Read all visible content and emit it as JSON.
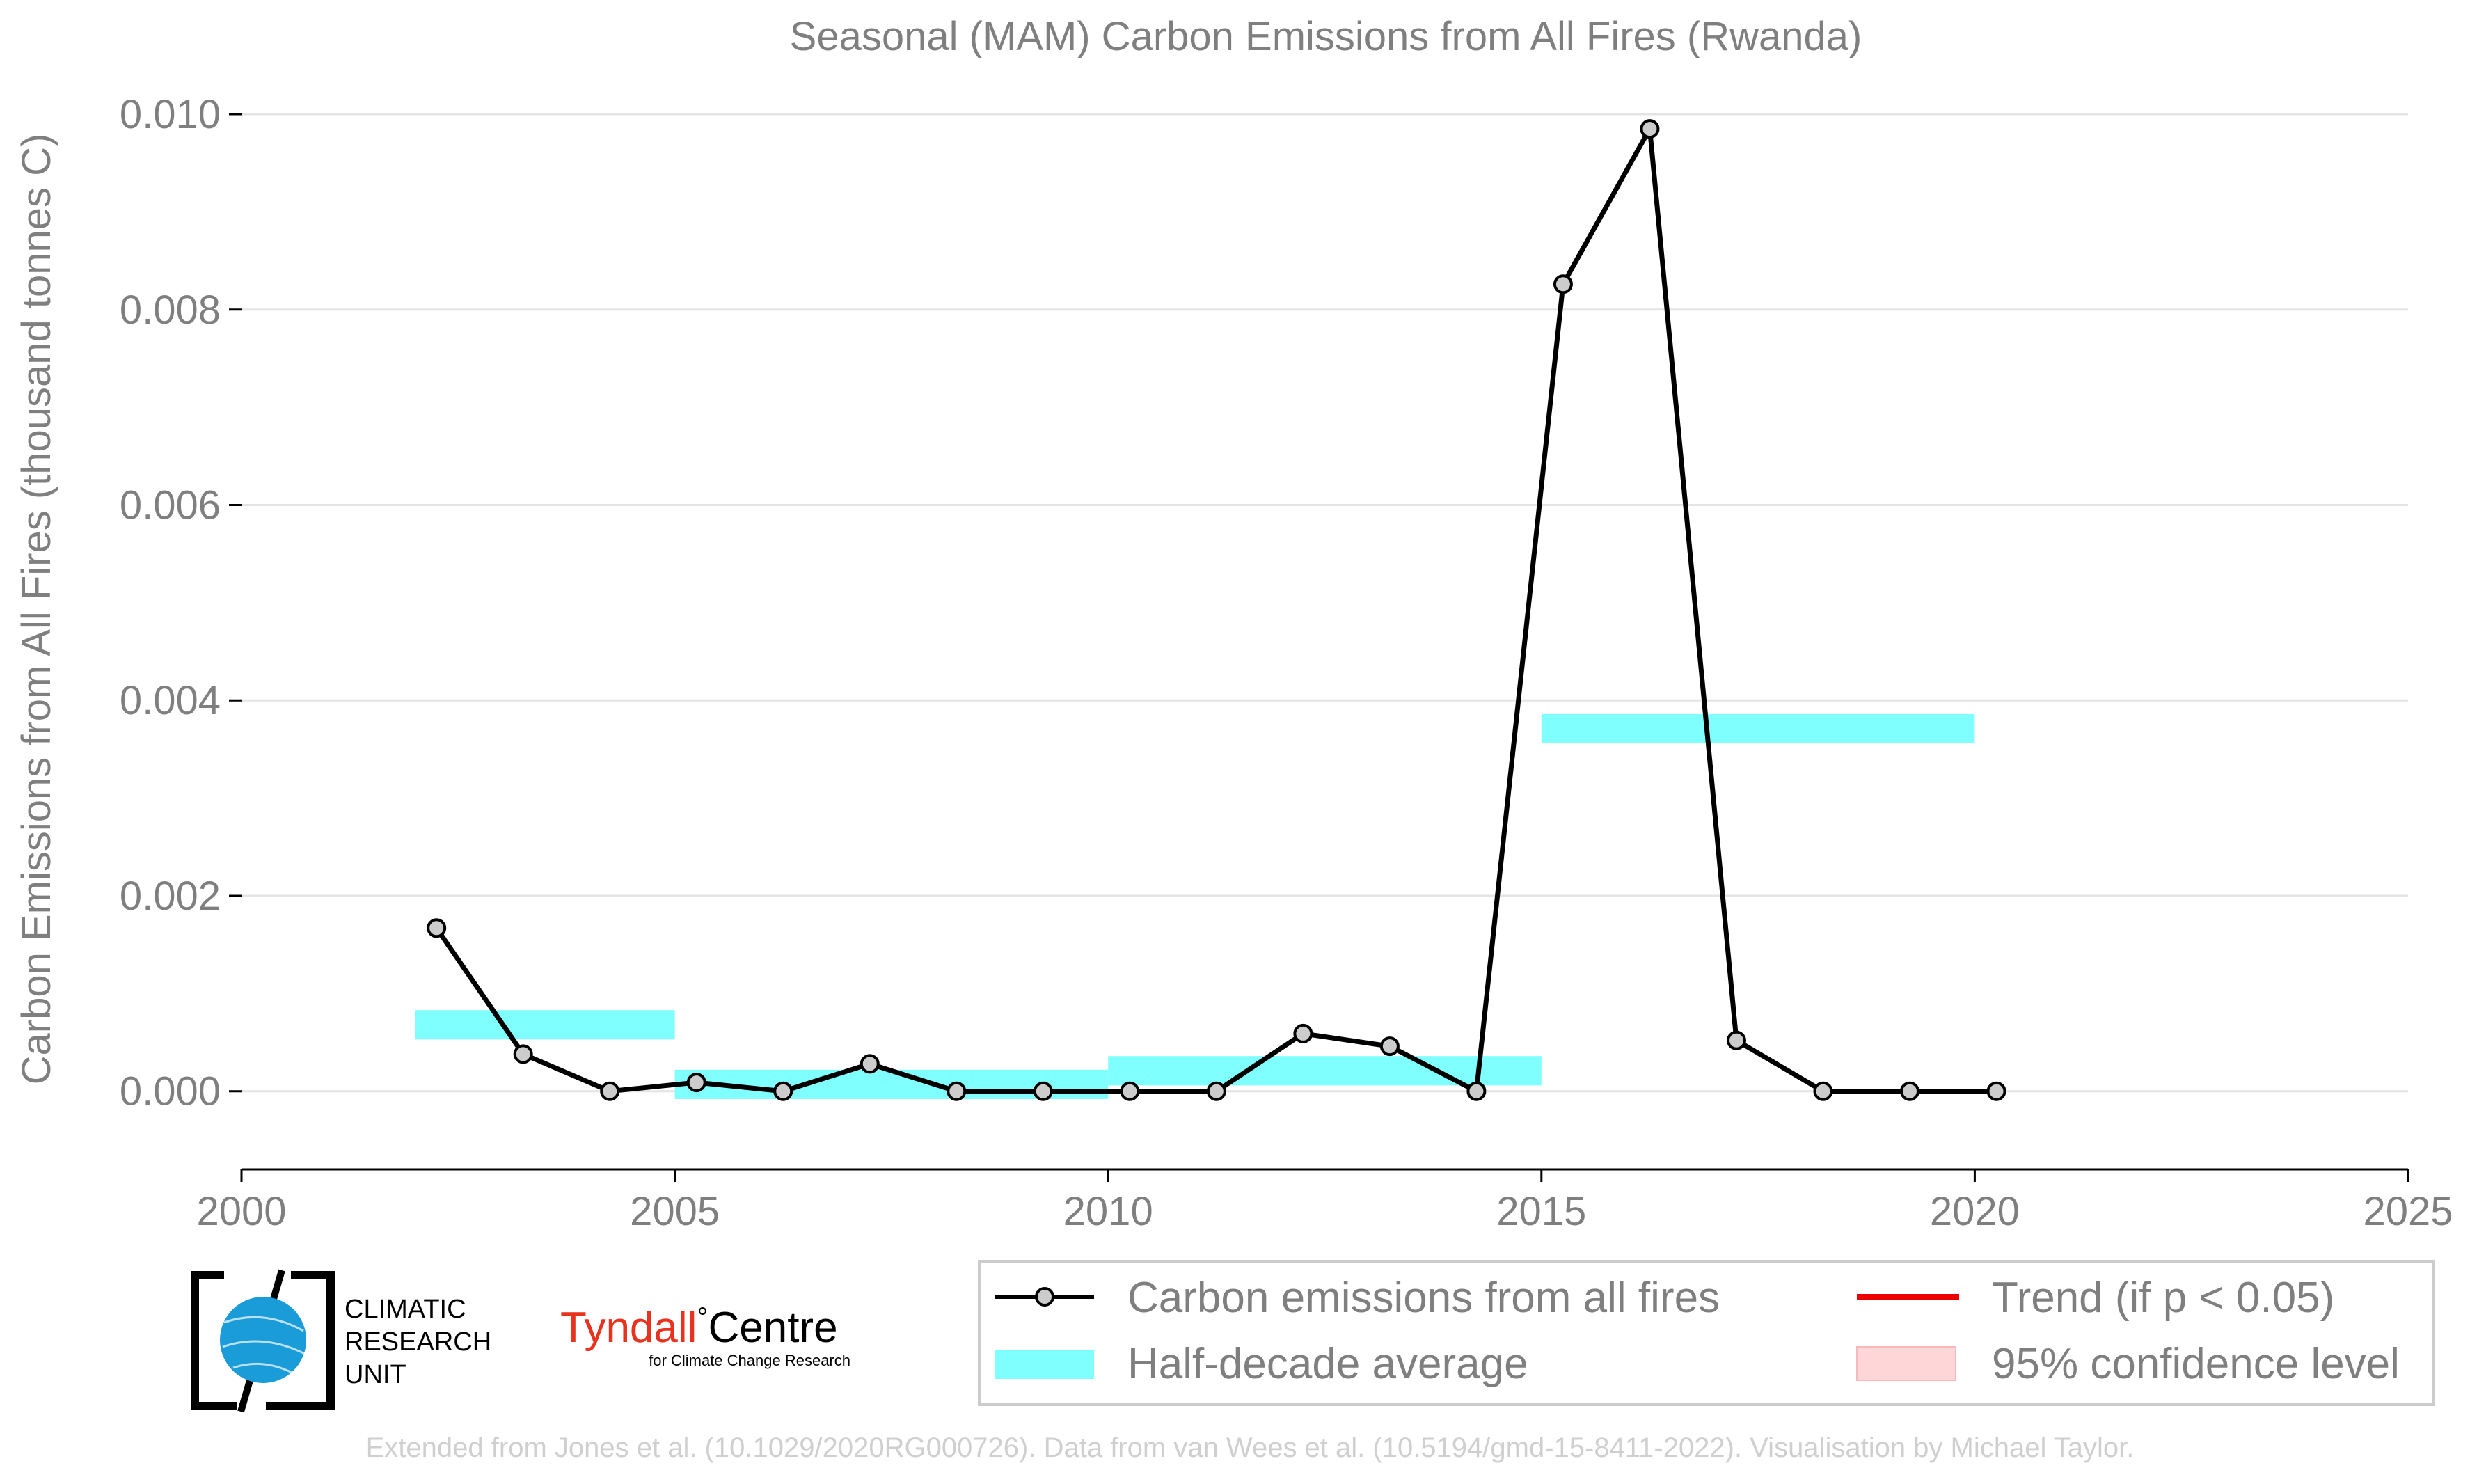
{
  "chart_data": {
    "type": "line",
    "title": "Seasonal (MAM) Carbon Emissions from All Fires (Rwanda)",
    "xlabel": "",
    "ylabel": "Carbon Emissions from All Fires (thousand tonnes C)",
    "xlim": [
      2000,
      2025
    ],
    "ylim": [
      -0.0008,
      0.0101
    ],
    "x_ticks": [
      2000,
      2005,
      2010,
      2015,
      2020,
      2025
    ],
    "y_ticks": [
      0.0,
      0.002,
      0.004,
      0.006,
      0.008,
      0.01
    ],
    "x_tick_labels": [
      "2000",
      "2005",
      "2010",
      "2015",
      "2020",
      "2025"
    ],
    "y_tick_labels": [
      "0.000",
      "0.002",
      "0.004",
      "0.006",
      "0.008",
      "0.010"
    ],
    "grid": "horizontal",
    "legend_position": "bottom",
    "series": [
      {
        "name": "Carbon emissions from all fires",
        "color": "#000000",
        "marker_fill": "#cccccc",
        "x": [
          2002.25,
          2003.25,
          2004.25,
          2005.25,
          2006.25,
          2007.25,
          2008.25,
          2009.25,
          2010.25,
          2011.25,
          2012.25,
          2013.25,
          2014.25,
          2015.25,
          2016.25,
          2017.25,
          2018.25,
          2019.25,
          2020.25
        ],
        "y": [
          0.00167,
          0.00038,
          0.0,
          9e-05,
          0.0,
          0.00028,
          0.0,
          0.0,
          0.0,
          0.0,
          0.00059,
          0.00046,
          0.0,
          0.00826,
          0.00985,
          0.00052,
          0.0,
          0.0,
          0.0
        ]
      }
    ],
    "half_decade_average": {
      "name": "Half-decade average",
      "color": "#80ffff",
      "periods": [
        {
          "x0": 2002,
          "x1": 2005,
          "y": 0.00068
        },
        {
          "x0": 2005,
          "x1": 2010,
          "y": 7e-05
        },
        {
          "x0": 2010,
          "x1": 2015,
          "y": 0.00021
        },
        {
          "x0": 2015,
          "x1": 2020,
          "y": 0.00371
        }
      ]
    },
    "legend": [
      {
        "key": "line",
        "label": "Carbon emissions from all fires",
        "color": "#000000"
      },
      {
        "key": "avg",
        "label": "Half-decade average",
        "color": "#80ffff"
      },
      {
        "key": "trend",
        "label": "Trend (if p < 0.05)",
        "color": "#ee0000"
      },
      {
        "key": "ci",
        "label": "95% confidence level",
        "color": "#ffd6d8"
      }
    ]
  },
  "logos": {
    "cru_lines": [
      "CLIMATIC",
      "RESEARCH",
      "UNIT"
    ],
    "tyndall_word1": "Tyndall",
    "tyndall_degree": "°",
    "tyndall_word2": "Centre",
    "tyndall_sub": "for Climate Change Research",
    "tyndall_color": "#e8321e",
    "cru_globe_color": "#1a9cd8"
  },
  "credit": "Extended from Jones et al. (10.1029/2020RG000726). Data from van Wees et al. (10.5194/gmd-15-8411-2022). Visualisation by Michael Taylor."
}
